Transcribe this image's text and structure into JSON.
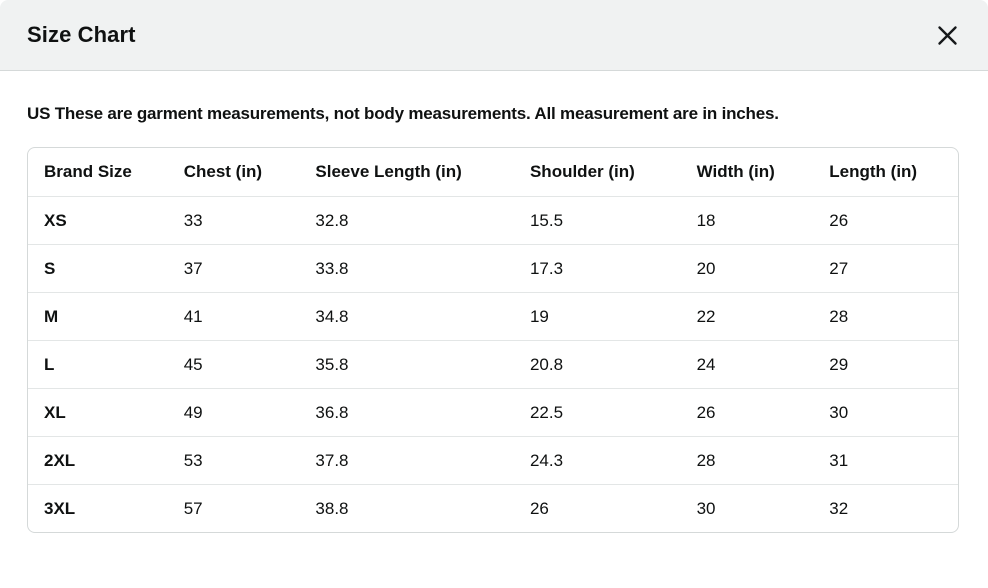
{
  "modal": {
    "title": "Size Chart"
  },
  "note": "US These are garment measurements, not body measurements. All measurement are in inches.",
  "table": {
    "columns": [
      "Brand Size",
      "Chest (in)",
      "Sleeve Length (in)",
      "Shoulder (in)",
      "Width (in)",
      "Length (in)"
    ],
    "rows": [
      [
        "XS",
        "33",
        "32.8",
        "15.5",
        "18",
        "26"
      ],
      [
        "S",
        "37",
        "33.8",
        "17.3",
        "20",
        "27"
      ],
      [
        "M",
        "41",
        "34.8",
        "19",
        "22",
        "28"
      ],
      [
        "L",
        "45",
        "35.8",
        "20.8",
        "24",
        "29"
      ],
      [
        "XL",
        "49",
        "36.8",
        "22.5",
        "26",
        "30"
      ],
      [
        "2XL",
        "53",
        "37.8",
        "24.3",
        "28",
        "31"
      ],
      [
        "3XL",
        "57",
        "38.8",
        "26",
        "30",
        "32"
      ]
    ]
  },
  "colors": {
    "header_bg": "#f0f2f2",
    "border": "#d5d9d9",
    "row_divider": "#e3e6e6",
    "text": "#0f1111"
  },
  "icons": {
    "close": "close-icon"
  }
}
